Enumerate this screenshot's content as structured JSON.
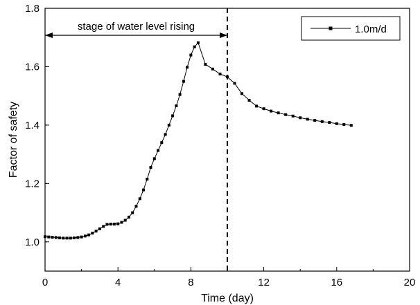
{
  "chart_data": {
    "type": "line",
    "xlabel": "Time (day)",
    "ylabel": "Factor of safety",
    "xlim": [
      0,
      20
    ],
    "ylim": [
      0.9,
      1.8
    ],
    "xticks": [
      0,
      4,
      8,
      12,
      16,
      20
    ],
    "xtick_labels": [
      "0",
      "4",
      "8",
      "12",
      "16",
      "20"
    ],
    "yticks": [
      1.0,
      1.2,
      1.4,
      1.6,
      1.8
    ],
    "ytick_labels": [
      "1.0",
      "1.2",
      "1.4",
      "1.6",
      "1.8"
    ],
    "grid": false,
    "legend_position": "top-right",
    "annotation": {
      "text": "stage of water level rising",
      "x_start": 0,
      "x_end": 10
    },
    "vline_x": 10,
    "series": [
      {
        "name": "1.0m/d",
        "color": "#000000",
        "marker": "square",
        "points": [
          [
            0.0,
            1.018
          ],
          [
            0.2,
            1.017
          ],
          [
            0.4,
            1.016
          ],
          [
            0.6,
            1.015
          ],
          [
            0.8,
            1.014
          ],
          [
            1.0,
            1.013
          ],
          [
            1.2,
            1.013
          ],
          [
            1.4,
            1.013
          ],
          [
            1.6,
            1.014
          ],
          [
            1.8,
            1.015
          ],
          [
            2.0,
            1.017
          ],
          [
            2.2,
            1.02
          ],
          [
            2.4,
            1.024
          ],
          [
            2.6,
            1.03
          ],
          [
            2.8,
            1.037
          ],
          [
            3.0,
            1.045
          ],
          [
            3.2,
            1.053
          ],
          [
            3.4,
            1.06
          ],
          [
            3.6,
            1.061
          ],
          [
            3.8,
            1.061
          ],
          [
            4.0,
            1.062
          ],
          [
            4.2,
            1.067
          ],
          [
            4.4,
            1.074
          ],
          [
            4.6,
            1.085
          ],
          [
            4.8,
            1.1
          ],
          [
            5.0,
            1.122
          ],
          [
            5.2,
            1.148
          ],
          [
            5.4,
            1.178
          ],
          [
            5.6,
            1.215
          ],
          [
            5.8,
            1.255
          ],
          [
            6.0,
            1.285
          ],
          [
            6.2,
            1.313
          ],
          [
            6.4,
            1.34
          ],
          [
            6.6,
            1.368
          ],
          [
            6.8,
            1.4
          ],
          [
            7.0,
            1.432
          ],
          [
            7.2,
            1.466
          ],
          [
            7.4,
            1.505
          ],
          [
            7.6,
            1.55
          ],
          [
            7.8,
            1.598
          ],
          [
            8.0,
            1.64
          ],
          [
            8.2,
            1.668
          ],
          [
            8.4,
            1.682
          ],
          [
            8.8,
            1.608
          ],
          [
            9.2,
            1.592
          ],
          [
            9.6,
            1.575
          ],
          [
            10.0,
            1.565
          ],
          [
            10.4,
            1.543
          ],
          [
            10.8,
            1.508
          ],
          [
            11.2,
            1.485
          ],
          [
            11.6,
            1.465
          ],
          [
            12.0,
            1.456
          ],
          [
            12.4,
            1.448
          ],
          [
            12.8,
            1.442
          ],
          [
            13.2,
            1.436
          ],
          [
            13.6,
            1.431
          ],
          [
            14.0,
            1.425
          ],
          [
            14.4,
            1.42
          ],
          [
            14.8,
            1.416
          ],
          [
            15.2,
            1.412
          ],
          [
            15.6,
            1.409
          ],
          [
            16.0,
            1.405
          ],
          [
            16.4,
            1.402
          ],
          [
            16.8,
            1.399
          ]
        ]
      }
    ]
  }
}
